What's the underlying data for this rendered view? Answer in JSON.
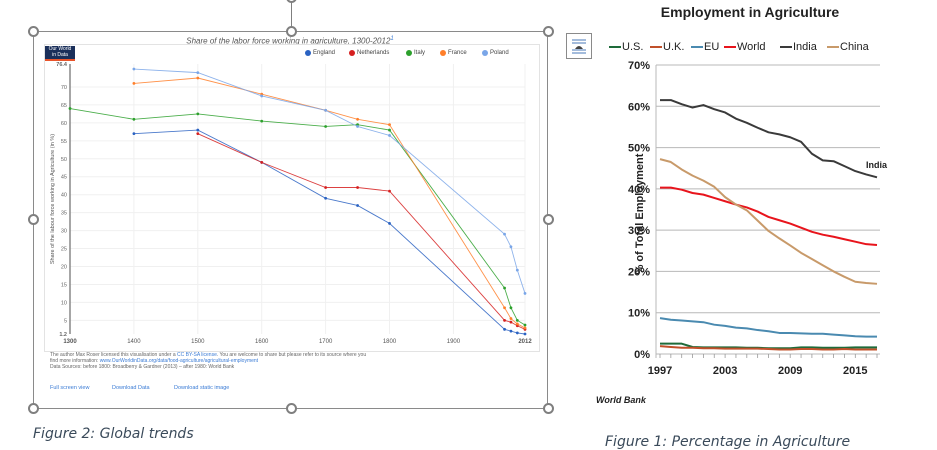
{
  "left_figure": {
    "caption": "Figure 2: Global trends",
    "logo_text": [
      "Our World",
      "in Data"
    ],
    "chart_title": "Share of the labor force working in agriculture, 1300-2012",
    "title_footnote": "1",
    "footer": {
      "line1_a": "The author Max Roser licensed this visualisation under a ",
      "license_link": "CC BY-SA license",
      "line1_b": ". You are welcome to share but please refer to its source where you",
      "line2_a": "find more information: ",
      "source_link": "www.OurWorldinData.org/data/food-agriculture/agricultural-employment",
      "line3": "Data Sources: before 1800: Broadberry & Gardner (2013) – after 1980: World Bank"
    },
    "links": [
      "Full screen view",
      "Download Data",
      "Download static image"
    ]
  },
  "right_figure": {
    "caption": "Figure 1: Percentage in Agriculture",
    "source_note": "World Bank",
    "layout_options_icon": "wrap-text-icon"
  },
  "chart_data": [
    {
      "type": "line",
      "title": "Share of the labor force working in agriculture, 1300-2012",
      "xlabel": "",
      "ylabel": "Share of the labour force working in Agriculture (in %)",
      "xlim": [
        1300,
        2012
      ],
      "ylim": [
        1.2,
        76.4
      ],
      "x_ticks": [
        "1300",
        "1400",
        "1500",
        "1600",
        "1700",
        "1800",
        "1900",
        "2012"
      ],
      "y_ticks": [
        "1.2",
        "5",
        "10",
        "15",
        "20",
        "25",
        "30",
        "35",
        "40",
        "45",
        "50",
        "55",
        "60",
        "65",
        "70",
        "76.4"
      ],
      "grid": true,
      "legend_position": "top-right",
      "series": [
        {
          "name": "England",
          "color": "#2a62c2",
          "points": [
            [
              1400,
              57
            ],
            [
              1500,
              58
            ],
            [
              1600,
              49
            ],
            [
              1700,
              39
            ],
            [
              1750,
              37
            ],
            [
              1800,
              32
            ],
            [
              1980,
              2.5
            ],
            [
              1990,
              2
            ],
            [
              2000,
              1.5
            ],
            [
              2012,
              1.2
            ]
          ]
        },
        {
          "name": "Netherlands",
          "color": "#d62020",
          "points": [
            [
              1500,
              57
            ],
            [
              1600,
              49
            ],
            [
              1700,
              42
            ],
            [
              1750,
              42
            ],
            [
              1800,
              41
            ],
            [
              1980,
              5
            ],
            [
              1990,
              4.5
            ],
            [
              2000,
              3.5
            ],
            [
              2012,
              2.5
            ]
          ]
        },
        {
          "name": "Italy",
          "color": "#2ca02c",
          "points": [
            [
              1300,
              64
            ],
            [
              1400,
              61
            ],
            [
              1500,
              62.5
            ],
            [
              1600,
              60.5
            ],
            [
              1700,
              59
            ],
            [
              1750,
              59.5
            ],
            [
              1800,
              58
            ],
            [
              1980,
              14
            ],
            [
              1990,
              8.5
            ],
            [
              2000,
              5
            ],
            [
              2012,
              3.7
            ]
          ]
        },
        {
          "name": "France",
          "color": "#ff7f2a",
          "points": [
            [
              1400,
              71
            ],
            [
              1500,
              72.5
            ],
            [
              1600,
              68
            ],
            [
              1700,
              63.5
            ],
            [
              1750,
              61
            ],
            [
              1800,
              59.5
            ],
            [
              1980,
              8.5
            ],
            [
              1990,
              5.5
            ],
            [
              2000,
              4
            ],
            [
              2012,
              2.9
            ]
          ]
        },
        {
          "name": "Poland",
          "color": "#7aa6e8",
          "points": [
            [
              1400,
              75
            ],
            [
              1500,
              74
            ],
            [
              1600,
              67.5
            ],
            [
              1700,
              63.5
            ],
            [
              1750,
              59
            ],
            [
              1800,
              56.5
            ],
            [
              1980,
              29
            ],
            [
              1990,
              25.5
            ],
            [
              2000,
              19
            ],
            [
              2012,
              12.5
            ]
          ]
        }
      ]
    },
    {
      "type": "line",
      "title": "Employment in Agriculture",
      "xlabel": "",
      "ylabel": "% of Total Employment",
      "xlim": [
        1997,
        2017
      ],
      "ylim": [
        0,
        70
      ],
      "x_ticks": [
        "1997",
        "2003",
        "2009",
        "2015"
      ],
      "y_ticks": [
        "0%",
        "10%",
        "20%",
        "30%",
        "40%",
        "50%",
        "60%",
        "70%"
      ],
      "grid": true,
      "legend_position": "top",
      "annotations": [
        {
          "text": "India",
          "x": 2016,
          "y": 46
        }
      ],
      "x": [
        1997,
        1998,
        1999,
        2000,
        2001,
        2002,
        2003,
        2004,
        2005,
        2006,
        2007,
        2008,
        2009,
        2010,
        2011,
        2012,
        2013,
        2014,
        2015,
        2016,
        2017
      ],
      "series": [
        {
          "name": "U.S.",
          "color": "#1e6b3a",
          "values": [
            2.5,
            2.5,
            2.5,
            1.7,
            1.6,
            1.6,
            1.6,
            1.6,
            1.5,
            1.5,
            1.4,
            1.4,
            1.4,
            1.6,
            1.6,
            1.5,
            1.5,
            1.5,
            1.6,
            1.6,
            1.6
          ]
        },
        {
          "name": "U.K.",
          "color": "#c0502a",
          "values": [
            1.9,
            1.7,
            1.5,
            1.5,
            1.4,
            1.4,
            1.3,
            1.3,
            1.3,
            1.3,
            1.2,
            1.1,
            1.1,
            1.2,
            1.2,
            1.1,
            1.1,
            1.2,
            1.1,
            1.1,
            1.1
          ]
        },
        {
          "name": "EU",
          "color": "#4a8ab0",
          "values": [
            8.7,
            8.3,
            8.1,
            7.9,
            7.7,
            7.1,
            6.8,
            6.4,
            6.2,
            5.8,
            5.5,
            5.1,
            5.1,
            5.0,
            4.9,
            4.9,
            4.7,
            4.5,
            4.3,
            4.2,
            4.2
          ]
        },
        {
          "name": "World",
          "color": "#e8141c",
          "values": [
            40.3,
            40.3,
            39.8,
            39.0,
            38.6,
            37.8,
            37.0,
            36.2,
            35.5,
            34.5,
            33.2,
            32.4,
            31.6,
            30.6,
            29.6,
            28.9,
            28.4,
            27.8,
            27.2,
            26.6,
            26.4
          ]
        },
        {
          "name": "India",
          "color": "#3a3a3a",
          "values": [
            61.5,
            61.5,
            60.5,
            59.7,
            60.3,
            59.3,
            58.5,
            57.0,
            56.0,
            54.8,
            53.7,
            53.2,
            52.5,
            51.4,
            48.5,
            46.9,
            46.7,
            45.5,
            44.3,
            43.5,
            42.8
          ]
        },
        {
          "name": "China",
          "color": "#c89a6a",
          "values": [
            47.2,
            46.5,
            44.7,
            43.2,
            42.0,
            40.5,
            38.0,
            36.2,
            34.8,
            32.3,
            29.8,
            28.0,
            26.3,
            24.5,
            23.0,
            21.5,
            20.0,
            18.7,
            17.5,
            17.2,
            17.0
          ]
        }
      ]
    }
  ]
}
